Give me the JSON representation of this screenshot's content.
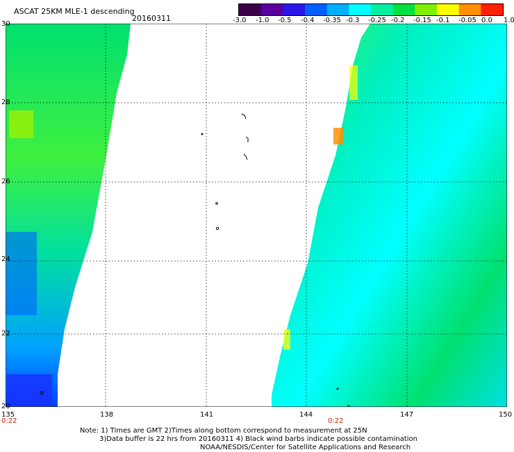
{
  "header": {
    "title": "ASCAT 25KM MLE-1 descending",
    "date": "20160311"
  },
  "colorbar": {
    "labels": [
      "-3.0",
      "-1.0",
      "-0.5",
      "-0.4",
      "-0.35",
      "-0.3",
      "-0.25",
      "-0.2",
      "-0.15",
      "-0.1",
      "-0.05",
      "0.0",
      "1.0"
    ],
    "colors": [
      "#3a0048",
      "#5a00a0",
      "#2a18e8",
      "#0060ff",
      "#00b0ff",
      "#00ffff",
      "#00f0a0",
      "#00e040",
      "#80f000",
      "#ffff00",
      "#ff9000",
      "#ff2000"
    ]
  },
  "axes": {
    "lat_labels": [
      "30",
      "28",
      "26",
      "24",
      "22",
      "20"
    ],
    "lon_labels": [
      "135",
      "138",
      "141",
      "144",
      "147",
      "150"
    ],
    "times": [
      "0:22",
      "0:22"
    ]
  },
  "notes": {
    "line1": "Note: 1) Times are GMT 2)Times along bottom correspond to measurement at 25N",
    "line2": "3)Data buffer is 22 hrs from 20160311 4) Black wind barbs indicate possible contamination",
    "line3": "NOAA/NESDIS/Center for Satellite Applications and Research"
  }
}
